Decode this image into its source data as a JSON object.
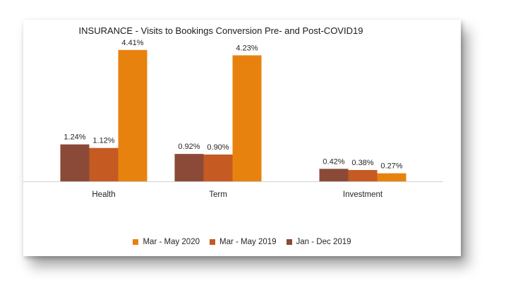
{
  "chart_data": {
    "type": "bar",
    "title": "INSURANCE - Visits to Bookings Conversion Pre- and Post-COVID19",
    "categories": [
      "Health",
      "Term",
      "Investment"
    ],
    "series": [
      {
        "name": "Jan - Dec 2019",
        "color": "#8b4a38",
        "values": [
          1.24,
          0.92,
          0.42
        ],
        "labels": [
          "1.24%",
          "0.92%",
          "0.42%"
        ]
      },
      {
        "name": "Mar - May 2019",
        "color": "#c55a22",
        "values": [
          1.12,
          0.9,
          0.38
        ],
        "labels": [
          "1.12%",
          "0.90%",
          "0.38%"
        ]
      },
      {
        "name": "Mar - May 2020",
        "color": "#e8820f",
        "values": [
          4.41,
          4.23,
          0.27
        ],
        "labels": [
          "4.41%",
          "4.23%",
          "0.27%"
        ]
      }
    ],
    "legend_order": [
      2,
      1,
      0
    ],
    "legend_position": "bottom",
    "ylim": [
      0,
      4.5
    ],
    "grid": false
  }
}
